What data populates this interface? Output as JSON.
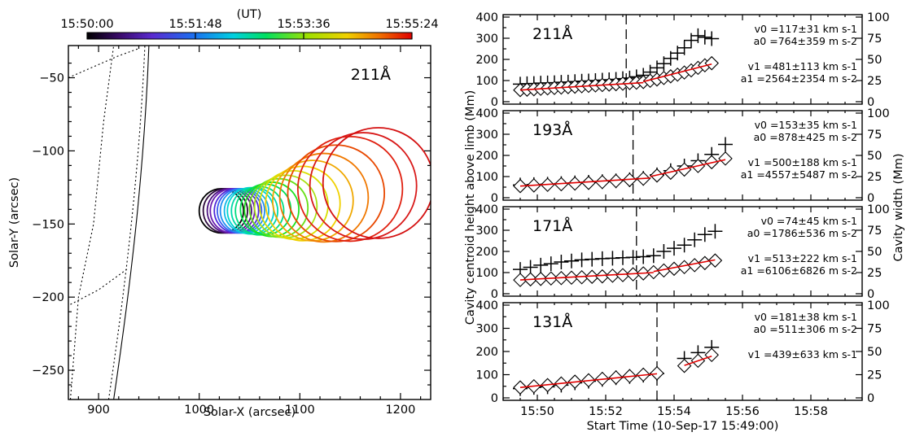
{
  "chart_data": [
    {
      "type": "scatter",
      "subtype": "circle-overlay",
      "title": "211Å",
      "xlabel": "Solar-X (arcsec)",
      "ylabel": "Solar-Y (arcsec)",
      "xlim": [
        870,
        1230
      ],
      "ylim": [
        -270,
        -28
      ],
      "xticks": [
        "900",
        "1000",
        "1100",
        "1200"
      ],
      "yticks": [
        "-50",
        "-100",
        "-150",
        "-200",
        "-250"
      ],
      "colorbar": {
        "label": "(UT)",
        "ticks": [
          "15:50:00",
          "15:51:48",
          "15:53:36",
          "15:55:24"
        ],
        "colormap": "rainbow"
      },
      "circles": [
        {
          "x": 1022,
          "y": -141,
          "r": 22,
          "color": "#000000"
        },
        {
          "x": 1026,
          "y": -141,
          "r": 22,
          "color": "#2d0a3c"
        },
        {
          "x": 1030,
          "y": -141,
          "r": 22,
          "color": "#4c1180"
        },
        {
          "x": 1033,
          "y": -141,
          "r": 22,
          "color": "#6a1cb0"
        },
        {
          "x": 1037,
          "y": -141,
          "r": 22,
          "color": "#5029d8"
        },
        {
          "x": 1040,
          "y": -141,
          "r": 22,
          "color": "#3a5cf0"
        },
        {
          "x": 1043,
          "y": -141,
          "r": 22,
          "color": "#208ff0"
        },
        {
          "x": 1047,
          "y": -141,
          "r": 22,
          "color": "#10b8e8"
        },
        {
          "x": 1051,
          "y": -141,
          "r": 23,
          "color": "#00d4d0"
        },
        {
          "x": 1055,
          "y": -141,
          "r": 23,
          "color": "#00d8a8"
        },
        {
          "x": 1060,
          "y": -141,
          "r": 24,
          "color": "#00dc80"
        },
        {
          "x": 1066,
          "y": -140,
          "r": 25,
          "color": "#00de50"
        },
        {
          "x": 1072,
          "y": -140,
          "r": 27,
          "color": "#20e020"
        },
        {
          "x": 1079,
          "y": -139,
          "r": 29,
          "color": "#68e018"
        },
        {
          "x": 1086,
          "y": -138,
          "r": 31,
          "color": "#a8e010"
        },
        {
          "x": 1094,
          "y": -137,
          "r": 34,
          "color": "#d8e000"
        },
        {
          "x": 1103,
          "y": -136,
          "r": 37,
          "color": "#f0d000"
        },
        {
          "x": 1113,
          "y": -134,
          "r": 40,
          "color": "#f0a800"
        },
        {
          "x": 1124,
          "y": -132,
          "r": 44,
          "color": "#f07800"
        },
        {
          "x": 1136,
          "y": -129,
          "r": 48,
          "color": "#e84800"
        },
        {
          "x": 1150,
          "y": -126,
          "r": 52,
          "color": "#e02010"
        },
        {
          "x": 1163,
          "y": -124,
          "r": 53,
          "color": "#d81818"
        },
        {
          "x": 1178,
          "y": -122,
          "r": 55,
          "color": "#d41010"
        }
      ]
    },
    {
      "type": "scatter",
      "xlabel": "Start Time (10-Sep-17 15:49:00)",
      "ylabel_left": "Cavity centroid height above limb (Mm)",
      "ylabel_right": "Cavity width (Mm)",
      "xlim_minutes": [
        0,
        10.5
      ],
      "xticks": [
        "15:50",
        "15:52",
        "15:54",
        "15:56",
        "15:58"
      ],
      "yticks_left": [
        "0",
        "100",
        "200",
        "300",
        "400"
      ],
      "yticks_right": [
        "0",
        "25",
        "50",
        "75",
        "100"
      ],
      "ylim_left": [
        0,
        400
      ],
      "ylim_right": [
        0,
        100
      ],
      "panels": [
        {
          "label": "211Å",
          "break_minutes": 3.6,
          "annot1": [
            "v0 =117±31 km s-1",
            "a0 =764±359 m s-2"
          ],
          "annot2": [
            "v1 =481±113 km s-1",
            "a1 =2564±2354 m s-2"
          ],
          "width_series": [
            [
              0.0,
              83
            ],
            [
              0.2,
              85
            ],
            [
              0.4,
              86
            ],
            [
              0.6,
              88
            ],
            [
              0.8,
              89
            ],
            [
              1.0,
              90
            ],
            [
              1.2,
              92
            ],
            [
              1.4,
              93
            ],
            [
              1.6,
              95
            ],
            [
              1.8,
              97
            ],
            [
              2.0,
              98
            ],
            [
              2.2,
              100
            ],
            [
              2.4,
              102
            ],
            [
              2.6,
              104
            ],
            [
              2.8,
              106
            ],
            [
              3.0,
              109
            ],
            [
              3.2,
              112
            ],
            [
              3.4,
              118
            ],
            [
              3.6,
              125
            ],
            [
              3.8,
              140
            ],
            [
              4.0,
              160
            ],
            [
              4.2,
              180
            ],
            [
              4.4,
              205
            ],
            [
              4.6,
              230
            ],
            [
              4.8,
              255
            ],
            [
              5.0,
              290
            ],
            [
              5.2,
              312
            ],
            [
              5.4,
              305
            ],
            [
              5.6,
              298
            ]
          ],
          "height_series": [
            [
              0.0,
              55
            ],
            [
              0.2,
              57
            ],
            [
              0.4,
              59
            ],
            [
              0.6,
              61
            ],
            [
              0.8,
              63
            ],
            [
              1.0,
              65
            ],
            [
              1.2,
              67
            ],
            [
              1.4,
              69
            ],
            [
              1.6,
              71
            ],
            [
              1.8,
              73
            ],
            [
              2.0,
              75
            ],
            [
              2.2,
              77
            ],
            [
              2.4,
              79
            ],
            [
              2.6,
              81
            ],
            [
              2.8,
              83
            ],
            [
              3.0,
              85
            ],
            [
              3.2,
              88
            ],
            [
              3.4,
              90
            ],
            [
              3.6,
              93
            ],
            [
              3.8,
              99
            ],
            [
              4.0,
              105
            ],
            [
              4.2,
              112
            ],
            [
              4.4,
              120
            ],
            [
              4.6,
              128
            ],
            [
              4.8,
              138
            ],
            [
              5.0,
              148
            ],
            [
              5.2,
              160
            ],
            [
              5.4,
              172
            ],
            [
              5.6,
              182
            ]
          ],
          "fit1": [
            [
              0,
              55
            ],
            [
              3.6,
              90
            ]
          ],
          "fit2": [
            [
              3.6,
              95
            ],
            [
              5.6,
              178
            ]
          ]
        },
        {
          "label": "193Å",
          "break_minutes": 3.8,
          "annot1": [
            "v0 =153±35 km s-1",
            "a0 =878±425 m s-2"
          ],
          "annot2": [
            "v1 =500±188 km s-1",
            "a1 =4557±5487 m s-2"
          ],
          "width_series": [
            [
              0.0,
              60
            ],
            [
              0.4,
              62
            ],
            [
              0.8,
              64
            ],
            [
              1.2,
              67
            ],
            [
              1.6,
              70
            ],
            [
              2.0,
              73
            ],
            [
              2.4,
              76
            ],
            [
              2.8,
              80
            ],
            [
              3.2,
              85
            ],
            [
              3.6,
              92
            ],
            [
              4.0,
              108
            ],
            [
              4.4,
              128
            ],
            [
              4.8,
              150
            ],
            [
              5.2,
              175
            ],
            [
              5.6,
              205
            ],
            [
              6.0,
              252
            ]
          ],
          "height_series": [
            [
              0.0,
              55
            ],
            [
              0.4,
              58
            ],
            [
              0.8,
              61
            ],
            [
              1.2,
              64
            ],
            [
              1.6,
              67
            ],
            [
              2.0,
              70
            ],
            [
              2.4,
              74
            ],
            [
              2.8,
              79
            ],
            [
              3.2,
              84
            ],
            [
              3.6,
              90
            ],
            [
              4.0,
              105
            ],
            [
              4.4,
              118
            ],
            [
              4.8,
              133
            ],
            [
              5.2,
              150
            ],
            [
              5.6,
              168
            ],
            [
              6.0,
              185
            ]
          ],
          "fit1": [
            [
              0,
              55
            ],
            [
              3.8,
              93
            ]
          ],
          "fit2": [
            [
              3.8,
              100
            ],
            [
              6.0,
              180
            ]
          ]
        },
        {
          "label": "171Å",
          "break_minutes": 3.9,
          "annot1": [
            "v0 =74±45 km s-1",
            "a0 =1786±536 m s-2"
          ],
          "annot2": [
            "v1 =513±222 km s-1",
            "a1 =6106±6826 m s-2"
          ],
          "width_series": [
            [
              0.0,
              115
            ],
            [
              0.3,
              125
            ],
            [
              0.6,
              135
            ],
            [
              0.9,
              142
            ],
            [
              1.2,
              150
            ],
            [
              1.5,
              155
            ],
            [
              1.8,
              160
            ],
            [
              2.1,
              163
            ],
            [
              2.4,
              166
            ],
            [
              2.7,
              168
            ],
            [
              3.0,
              170
            ],
            [
              3.3,
              172
            ],
            [
              3.6,
              175
            ],
            [
              3.9,
              180
            ],
            [
              4.2,
              200
            ],
            [
              4.5,
              215
            ],
            [
              4.8,
              230
            ],
            [
              5.1,
              255
            ],
            [
              5.4,
              280
            ],
            [
              5.7,
              295
            ]
          ],
          "height_series": [
            [
              0.0,
              65
            ],
            [
              0.3,
              68
            ],
            [
              0.6,
              70
            ],
            [
              0.9,
              72
            ],
            [
              1.2,
              74
            ],
            [
              1.5,
              76
            ],
            [
              1.8,
              78
            ],
            [
              2.1,
              80
            ],
            [
              2.4,
              82
            ],
            [
              2.7,
              85
            ],
            [
              3.0,
              88
            ],
            [
              3.3,
              92
            ],
            [
              3.6,
              96
            ],
            [
              3.9,
              102
            ],
            [
              4.2,
              110
            ],
            [
              4.5,
              118
            ],
            [
              4.8,
              126
            ],
            [
              5.1,
              135
            ],
            [
              5.4,
              145
            ],
            [
              5.7,
              157
            ]
          ],
          "fit1": [
            [
              0,
              65
            ],
            [
              3.9,
              100
            ]
          ],
          "fit2": [
            [
              3.9,
              105
            ],
            [
              5.7,
              160
            ]
          ]
        },
        {
          "label": "131Å",
          "break_minutes": 4.5,
          "annot1": [
            "v0 =181±38 km s-1",
            "a0 =511±306 m s-2"
          ],
          "annot2": [
            "v1 =439±633 km s-1"
          ],
          "width_series": [
            [
              0.0,
              40
            ],
            [
              0.4,
              45
            ],
            [
              0.8,
              48
            ],
            [
              1.2,
              55
            ],
            [
              1.6,
              65
            ],
            [
              2.0,
              72
            ],
            [
              2.4,
              80
            ],
            [
              2.8,
              87
            ],
            [
              3.2,
              92
            ],
            [
              3.6,
              98
            ],
            [
              4.0,
              105
            ],
            [
              4.8,
              170
            ],
            [
              5.2,
              195
            ],
            [
              5.6,
              218
            ]
          ],
          "height_series": [
            [
              0.0,
              45
            ],
            [
              0.4,
              50
            ],
            [
              0.8,
              55
            ],
            [
              1.2,
              62
            ],
            [
              1.6,
              70
            ],
            [
              2.0,
              76
            ],
            [
              2.4,
              82
            ],
            [
              2.8,
              88
            ],
            [
              3.2,
              94
            ],
            [
              3.6,
              100
            ],
            [
              4.0,
              106
            ],
            [
              4.8,
              138
            ],
            [
              5.2,
              160
            ],
            [
              5.6,
              185
            ]
          ],
          "fit1": [
            [
              0,
              45
            ],
            [
              4.0,
              104
            ]
          ],
          "fit2": [
            [
              4.8,
              140
            ],
            [
              5.6,
              180
            ]
          ]
        }
      ]
    }
  ]
}
